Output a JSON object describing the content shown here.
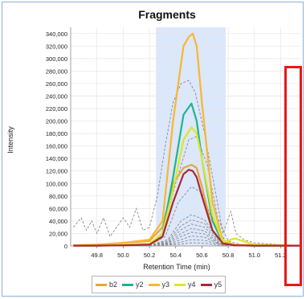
{
  "chart_data": {
    "type": "line",
    "title": "Fragments",
    "xlabel": "Retention Time (min)",
    "ylabel": "Intensity",
    "xlim": [
      49.6,
      51.35
    ],
    "ylim": [
      0,
      350000
    ],
    "x_ticks": [
      "49.8",
      "50.0",
      "50.2",
      "50.4",
      "50.6",
      "50.8",
      "51.0",
      "51.2"
    ],
    "y_ticks": [
      "0",
      "20,000",
      "40,000",
      "60,000",
      "80,000",
      "100,000",
      "120,000",
      "140,000",
      "160,000",
      "180,000",
      "200,000",
      "220,000",
      "240,000",
      "260,000",
      "280,000",
      "300,000",
      "320,000",
      "340,000"
    ],
    "x_tick_values": [
      49.8,
      50.0,
      50.2,
      50.4,
      50.6,
      50.8,
      51.0,
      51.2
    ],
    "y_tick_values": [
      0,
      20000,
      40000,
      60000,
      80000,
      100000,
      120000,
      140000,
      160000,
      180000,
      200000,
      220000,
      240000,
      260000,
      280000,
      300000,
      320000,
      340000
    ],
    "highlight_range": [
      50.25,
      50.78
    ],
    "grid": true,
    "legend_position": "bottom",
    "series": [
      {
        "name": "b2",
        "color": "#e8a63a",
        "x": [
          49.62,
          49.8,
          50.0,
          50.2,
          50.3,
          50.38,
          50.46,
          50.52,
          50.56,
          50.6,
          50.68,
          50.76,
          50.85,
          51.0,
          51.2,
          51.35
        ],
        "y": [
          1000,
          2000,
          5000,
          8000,
          30000,
          100000,
          125000,
          130000,
          125000,
          95000,
          25000,
          4000,
          2000,
          1000,
          500,
          500
        ]
      },
      {
        "name": "y2",
        "color": "#1fb48e",
        "x": [
          49.62,
          49.8,
          50.0,
          50.2,
          50.3,
          50.38,
          50.46,
          50.52,
          50.56,
          50.6,
          50.68,
          50.76,
          50.85,
          51.0,
          51.2,
          51.35
        ],
        "y": [
          500,
          500,
          1000,
          3000,
          20000,
          110000,
          210000,
          228000,
          200000,
          140000,
          40000,
          5000,
          1000,
          500,
          500,
          500
        ]
      },
      {
        "name": "y3",
        "color": "#f7b731",
        "x": [
          49.62,
          49.8,
          50.0,
          50.2,
          50.3,
          50.38,
          50.46,
          50.5,
          50.53,
          50.56,
          50.6,
          50.68,
          50.76,
          50.85,
          51.0,
          51.2,
          51.35
        ],
        "y": [
          1000,
          2000,
          5000,
          10000,
          40000,
          200000,
          320000,
          335000,
          340000,
          320000,
          230000,
          70000,
          8000,
          2000,
          1000,
          500,
          500
        ]
      },
      {
        "name": "y4",
        "color": "#dbe62a",
        "x": [
          49.62,
          49.8,
          50.0,
          50.2,
          50.3,
          50.38,
          50.46,
          50.52,
          50.56,
          50.6,
          50.68,
          50.76,
          50.85,
          51.0,
          51.2,
          51.35
        ],
        "y": [
          500,
          500,
          2000,
          4000,
          20000,
          90000,
          170000,
          190000,
          180000,
          140000,
          50000,
          6000,
          12000,
          2000,
          1000,
          500
        ]
      },
      {
        "name": "y5",
        "color": "#a8283a",
        "x": [
          49.62,
          49.8,
          50.0,
          50.2,
          50.3,
          50.38,
          50.46,
          50.5,
          50.53,
          50.56,
          50.6,
          50.68,
          50.76,
          50.85,
          51.0,
          51.2,
          51.35
        ],
        "y": [
          500,
          500,
          1000,
          2000,
          15000,
          70000,
          115000,
          122000,
          120000,
          110000,
          80000,
          25000,
          4000,
          1000,
          500,
          500,
          500
        ]
      }
    ],
    "background_traces": [
      {
        "x": [
          49.62,
          49.68,
          49.72,
          49.76,
          49.8,
          49.85,
          49.9,
          49.95,
          50.0,
          50.05,
          50.1,
          50.15,
          50.2,
          50.26,
          50.32,
          50.38,
          50.44,
          50.5,
          50.55,
          50.62,
          50.7,
          50.76,
          50.82,
          50.86,
          50.92,
          51.0,
          51.2,
          51.35
        ],
        "y": [
          30000,
          45000,
          25000,
          40000,
          20000,
          45000,
          15000,
          30000,
          45000,
          30000,
          60000,
          25000,
          30000,
          80000,
          160000,
          230000,
          260000,
          265000,
          245000,
          180000,
          90000,
          20000,
          55000,
          20000,
          10000,
          5000,
          2000,
          1000
        ]
      },
      {
        "x": [
          50.2,
          50.3,
          50.4,
          50.5,
          50.56,
          50.64,
          50.72,
          50.8,
          50.9
        ],
        "y": [
          2000,
          20000,
          100000,
          170000,
          175000,
          130000,
          45000,
          8000,
          2000
        ]
      },
      {
        "x": [
          50.2,
          50.32,
          50.42,
          50.52,
          50.6,
          50.7,
          50.8
        ],
        "y": [
          1000,
          15000,
          70000,
          95000,
          85000,
          30000,
          3000
        ]
      },
      {
        "x": [
          50.2,
          50.34,
          50.44,
          50.52,
          50.62,
          50.72,
          50.8
        ],
        "y": [
          1000,
          10000,
          40000,
          50000,
          42000,
          12000,
          2000
        ]
      },
      {
        "x": [
          50.2,
          50.34,
          50.44,
          50.52,
          50.62,
          50.72,
          50.8
        ],
        "y": [
          1000,
          8000,
          32000,
          42000,
          36000,
          10000,
          1500
        ]
      },
      {
        "x": [
          50.2,
          50.34,
          50.44,
          50.52,
          50.62,
          50.72,
          50.8
        ],
        "y": [
          1000,
          6000,
          26000,
          35000,
          30000,
          8000,
          1000
        ]
      },
      {
        "x": [
          50.2,
          50.34,
          50.44,
          50.52,
          50.62,
          50.72,
          50.8
        ],
        "y": [
          500,
          5000,
          20000,
          28000,
          24000,
          6000,
          800
        ]
      },
      {
        "x": [
          50.2,
          50.34,
          50.44,
          50.52,
          50.62,
          50.72,
          50.8
        ],
        "y": [
          500,
          4000,
          15000,
          22000,
          19000,
          5000,
          600
        ]
      },
      {
        "x": [
          50.2,
          50.34,
          50.44,
          50.52,
          50.62,
          50.72,
          50.8
        ],
        "y": [
          500,
          3000,
          10000,
          16000,
          14000,
          4000,
          500
        ]
      },
      {
        "x": [
          50.2,
          50.34,
          50.44,
          50.52,
          50.62,
          50.72,
          50.8
        ],
        "y": [
          500,
          2000,
          6000,
          10000,
          9000,
          3000,
          500
        ]
      },
      {
        "x": [
          50.2,
          50.34,
          50.44,
          50.52,
          50.62,
          50.72,
          50.8
        ],
        "y": [
          300,
          1500,
          3000,
          5000,
          4500,
          1500,
          300
        ]
      }
    ]
  }
}
